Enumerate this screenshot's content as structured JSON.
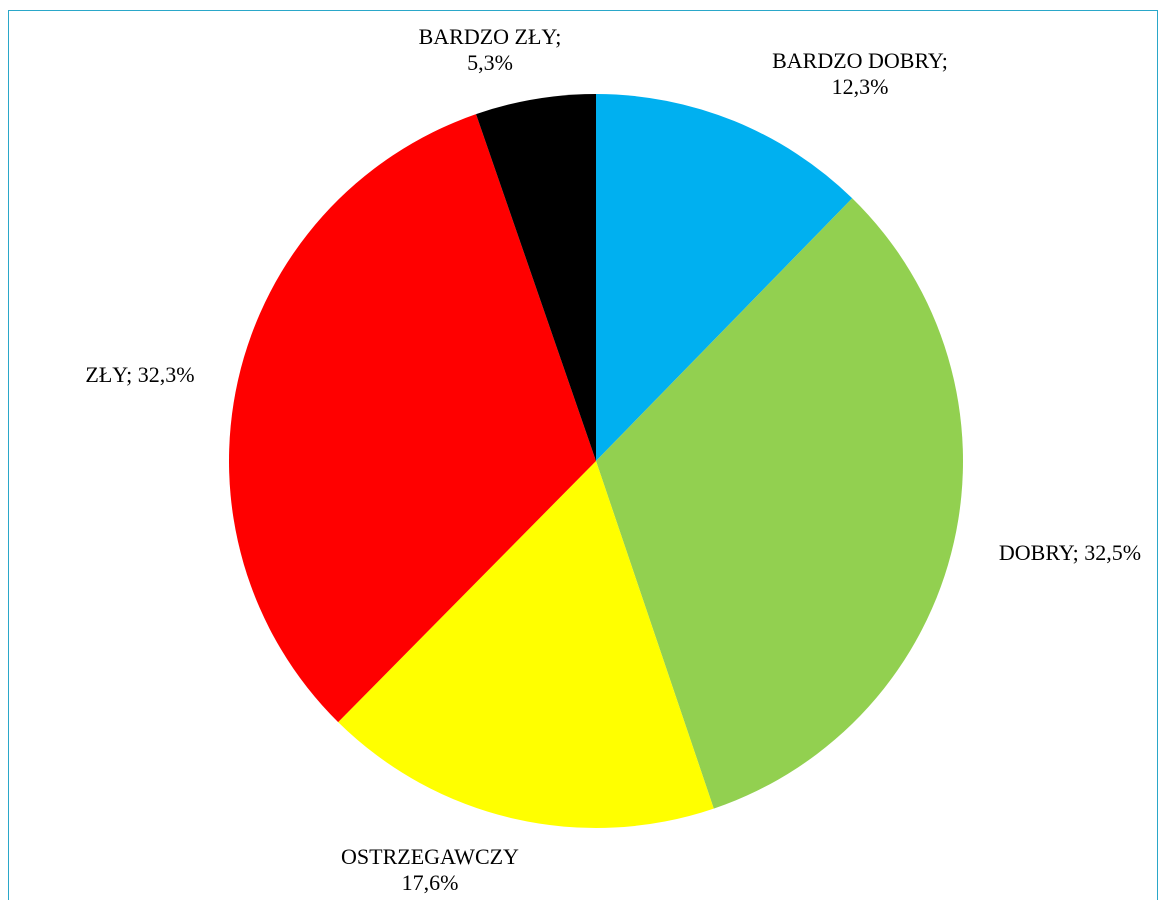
{
  "chart_data": {
    "type": "pie",
    "slices": [
      {
        "label": "BARDZO DOBRY",
        "value": 12.3,
        "text": "12,3%",
        "color": "#00b0f0"
      },
      {
        "label": "DOBRY",
        "value": 32.5,
        "text": "32,5%",
        "color": "#92d050"
      },
      {
        "label": "OSTRZEGAWCZY",
        "value": 17.6,
        "text": "17,6%",
        "color": "#ffff00"
      },
      {
        "label": "ZŁY",
        "value": 32.3,
        "text": "32,3%",
        "color": "#ff0000"
      },
      {
        "label": "BARDZO ZŁY",
        "value": 5.3,
        "text": "5,3%",
        "color": "#000000"
      }
    ],
    "legend": "none"
  },
  "labels": {
    "bardzo_dobry": {
      "name": "BARDZO DOBRY;",
      "value": "12,3%"
    },
    "dobry": {
      "text": "DOBRY; 32,5%"
    },
    "ostrzegawczy": {
      "name": "OSTRZEGAWCZY",
      "value": "17,6%"
    },
    "zly": {
      "text": "ZŁY; 32,3%"
    },
    "bardzo_zly": {
      "name": "BARDZO ZŁY;",
      "value": "5,3%"
    }
  }
}
